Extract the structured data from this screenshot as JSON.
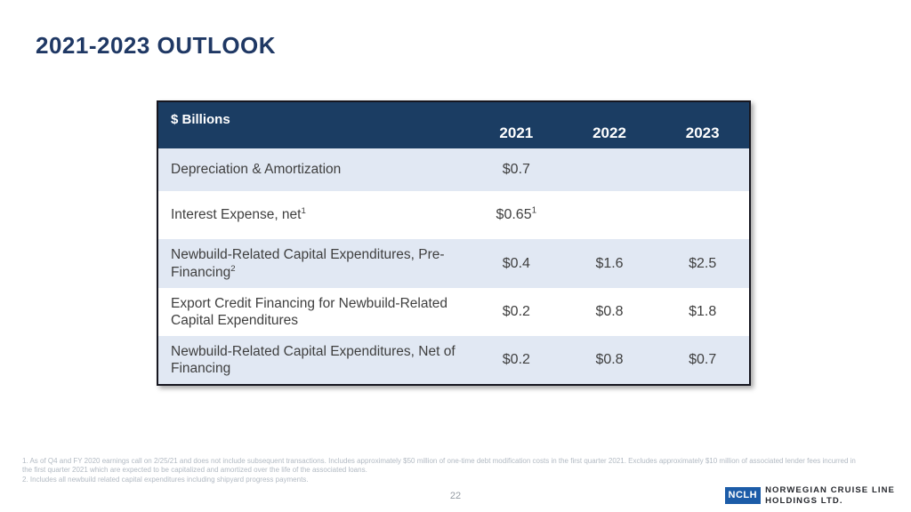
{
  "slide": {
    "title": "2021-2023 OUTLOOK",
    "page_number": "22"
  },
  "table": {
    "unit_header": "$ Billions",
    "year_columns": [
      "2021",
      "2022",
      "2023"
    ],
    "rows": [
      {
        "label": "Depreciation & Amortization",
        "label_sup": "",
        "cells": [
          {
            "t": "$0.7",
            "sup": ""
          },
          {
            "t": "",
            "sup": ""
          },
          {
            "t": "",
            "sup": ""
          }
        ]
      },
      {
        "label": "Interest Expense, net",
        "label_sup": "1",
        "cells": [
          {
            "t": "$0.65",
            "sup": "1"
          },
          {
            "t": "",
            "sup": ""
          },
          {
            "t": "",
            "sup": ""
          }
        ]
      },
      {
        "label": "Newbuild-Related Capital Expenditures, Pre-Financing",
        "label_sup": "2",
        "cells": [
          {
            "t": "$0.4",
            "sup": ""
          },
          {
            "t": "$1.6",
            "sup": ""
          },
          {
            "t": "$2.5",
            "sup": ""
          }
        ]
      },
      {
        "label": "Export Credit Financing for Newbuild-Related Capital Expenditures",
        "label_sup": "",
        "cells": [
          {
            "t": "$0.2",
            "sup": ""
          },
          {
            "t": "$0.8",
            "sup": ""
          },
          {
            "t": "$1.8",
            "sup": ""
          }
        ]
      },
      {
        "label": "Newbuild-Related Capital Expenditures, Net of Financing",
        "label_sup": "",
        "cells": [
          {
            "t": "$0.2",
            "sup": ""
          },
          {
            "t": "$0.8",
            "sup": ""
          },
          {
            "t": "$0.7",
            "sup": ""
          }
        ]
      }
    ]
  },
  "footnotes": [
    "1. As of Q4 and FY 2020 earnings call on 2/25/21 and does not include subsequent transactions. Includes approximately $50 million of one-time debt modification costs in the first quarter 2021. Excludes approximately $10 million of associated lender fees incurred in the first quarter 2021 which are expected to be capitalized and amortized over the life of the associated loans.",
    "2. Includes all newbuild related capital expenditures including shipyard progress payments."
  ],
  "footer": {
    "logo_abbr": "NCLH",
    "logo_line1": "NORWEGIAN CRUISE LINE",
    "logo_line2": "HOLDINGS LTD."
  },
  "colors": {
    "title_navy": "#1f3864",
    "header_bg": "#1b3d63",
    "row_alt_bg": "#e1e8f3",
    "table_border": "#16161f",
    "footnote_text": "#b2bac3",
    "logo_blue": "#1c5ca8"
  }
}
